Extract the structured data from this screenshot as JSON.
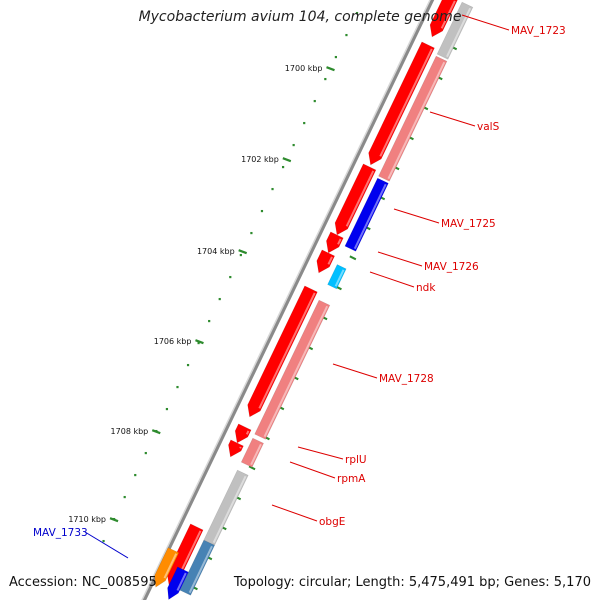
{
  "title": "Mycobacterium avium 104, complete genome",
  "footer": {
    "accession": "Accession: NC_008595",
    "summary": "Topology: circular; Length: 5,475,491 bp; Genes: 5,170"
  },
  "colors": {
    "backbone": "#8a8a8a",
    "tick": "#2e8b2e",
    "forward_cds": "#ff0000",
    "reverse_cds": "#ff0000",
    "rna": "#f08080",
    "pseudo": "#c0c0c0",
    "highlight_blue": "#0000ee",
    "highlight_cyan": "#00bfff",
    "highlight_steel": "#4682b4",
    "highlight_orange": "#ff8c00",
    "label_red": "#dd0000",
    "label_blue": "#0000cc"
  },
  "scale": {
    "ticks": [
      {
        "label": "1700 kbp"
      },
      {
        "label": "1702 kbp"
      },
      {
        "label": "1704 kbp"
      },
      {
        "label": "1706 kbp"
      },
      {
        "label": "1708 kbp"
      },
      {
        "label": "1710 kbp"
      }
    ]
  },
  "genes": [
    {
      "label": "MAV_1723",
      "color": "label_red"
    },
    {
      "label": "valS",
      "color": "label_red"
    },
    {
      "label": "MAV_1725",
      "color": "label_red"
    },
    {
      "label": "MAV_1726",
      "color": "label_red"
    },
    {
      "label": "ndk",
      "color": "label_red"
    },
    {
      "label": "MAV_1728",
      "color": "label_red"
    },
    {
      "label": "rplU",
      "color": "label_red"
    },
    {
      "label": "rpmA",
      "color": "label_red"
    },
    {
      "label": "obgE",
      "color": "label_red"
    },
    {
      "label": "MAV_1733",
      "color": "label_blue"
    }
  ]
}
